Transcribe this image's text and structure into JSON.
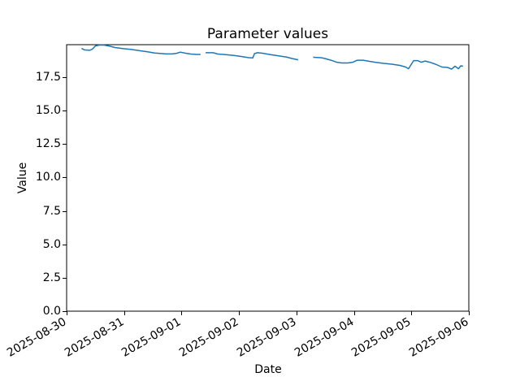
{
  "figure": {
    "background": "#ffffff"
  },
  "chart_data": {
    "type": "line",
    "title": "Parameter values",
    "xlabel": "Date",
    "ylabel": "Value",
    "legend": "none",
    "grid": false,
    "line_color": "#1f77b4",
    "axis_color": "#000000",
    "x_tick_labels": [
      "2025-08-30",
      "2025-08-31",
      "2025-09-01",
      "2025-09-02",
      "2025-09-03",
      "2025-09-04",
      "2025-09-05",
      "2025-09-06"
    ],
    "x_tick_days": [
      0,
      1,
      2,
      3,
      4,
      5,
      6,
      7
    ],
    "y_tick_labels": [
      "0.0",
      "2.5",
      "5.0",
      "7.5",
      "10.0",
      "12.5",
      "15.0",
      "17.5"
    ],
    "y_ticks": [
      0,
      2.5,
      5,
      7.5,
      10,
      12.5,
      15,
      17.5
    ],
    "xlim_days": [
      0,
      7
    ],
    "ylim": [
      0,
      19.93
    ],
    "x_axis_note": "x values are day offsets from 2025-08-30 00:00",
    "series": [
      {
        "name": "Parameter values",
        "segments": [
          [
            [
              0.26,
              19.65
            ],
            [
              0.31,
              19.54
            ],
            [
              0.4,
              19.51
            ],
            [
              0.45,
              19.6
            ],
            [
              0.5,
              19.84
            ],
            [
              0.57,
              19.9
            ],
            [
              0.65,
              19.9
            ],
            [
              0.74,
              19.83
            ],
            [
              0.85,
              19.71
            ],
            [
              0.99,
              19.63
            ],
            [
              1.13,
              19.57
            ],
            [
              1.27,
              19.48
            ],
            [
              1.41,
              19.4
            ],
            [
              1.53,
              19.31
            ],
            [
              1.74,
              19.24
            ],
            [
              1.84,
              19.24
            ],
            [
              1.92,
              19.29
            ],
            [
              1.98,
              19.37
            ],
            [
              2.07,
              19.29
            ],
            [
              2.16,
              19.23
            ],
            [
              2.26,
              19.2
            ],
            [
              2.33,
              19.2
            ]
          ],
          [
            [
              2.42,
              19.33
            ],
            [
              2.55,
              19.33
            ],
            [
              2.63,
              19.23
            ],
            [
              2.77,
              19.19
            ],
            [
              2.91,
              19.12
            ],
            [
              3.05,
              19.04
            ],
            [
              3.17,
              18.96
            ],
            [
              3.24,
              18.94
            ],
            [
              3.27,
              19.26
            ],
            [
              3.32,
              19.33
            ],
            [
              3.41,
              19.29
            ],
            [
              3.55,
              19.19
            ],
            [
              3.69,
              19.1
            ],
            [
              3.82,
              19.01
            ],
            [
              3.93,
              18.89
            ],
            [
              4.03,
              18.8
            ]
          ],
          [
            [
              4.29,
              18.99
            ],
            [
              4.43,
              18.96
            ],
            [
              4.5,
              18.89
            ],
            [
              4.6,
              18.77
            ],
            [
              4.7,
              18.62
            ],
            [
              4.79,
              18.56
            ],
            [
              4.89,
              18.56
            ],
            [
              4.98,
              18.62
            ],
            [
              5.06,
              18.77
            ],
            [
              5.16,
              18.77
            ],
            [
              5.28,
              18.68
            ],
            [
              5.37,
              18.62
            ],
            [
              5.52,
              18.53
            ],
            [
              5.66,
              18.47
            ],
            [
              5.8,
              18.38
            ],
            [
              5.9,
              18.26
            ],
            [
              5.95,
              18.13
            ],
            [
              6.0,
              18.47
            ],
            [
              6.04,
              18.74
            ],
            [
              6.11,
              18.74
            ],
            [
              6.17,
              18.62
            ],
            [
              6.24,
              18.71
            ],
            [
              6.32,
              18.62
            ],
            [
              6.42,
              18.47
            ],
            [
              6.53,
              18.26
            ],
            [
              6.63,
              18.23
            ],
            [
              6.7,
              18.1
            ],
            [
              6.76,
              18.32
            ],
            [
              6.82,
              18.13
            ],
            [
              6.86,
              18.35
            ],
            [
              6.9,
              18.32
            ]
          ]
        ]
      }
    ]
  }
}
